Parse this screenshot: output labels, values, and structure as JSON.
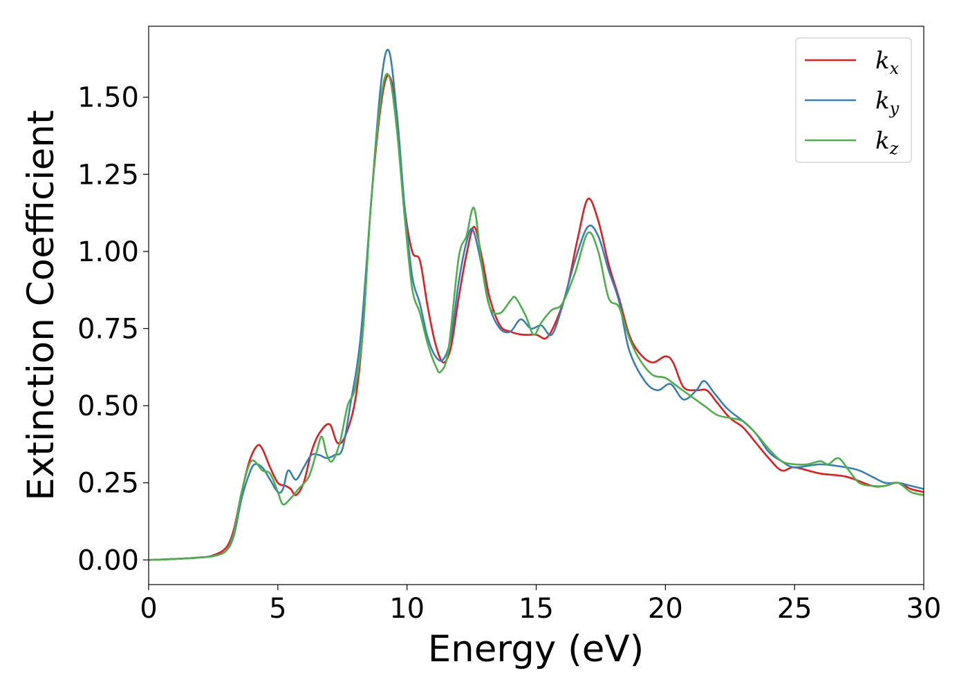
{
  "chart_data": {
    "type": "line",
    "title": "",
    "xlabel": "Energy (eV)",
    "ylabel": "Extinction Coefficient",
    "xlim": [
      0,
      30
    ],
    "ylim": [
      -0.08,
      1.73
    ],
    "xticks": [
      0,
      5,
      10,
      15,
      20,
      25,
      30
    ],
    "xtick_labels": [
      "0",
      "5",
      "10",
      "15",
      "20",
      "25",
      "30"
    ],
    "yticks": [
      0.0,
      0.25,
      0.5,
      0.75,
      1.0,
      1.25,
      1.5
    ],
    "ytick_labels": [
      "0.00",
      "0.25",
      "0.50",
      "0.75",
      "1.00",
      "1.25",
      "1.50"
    ],
    "grid": false,
    "legend_position": "top-right",
    "series": [
      {
        "name": "k",
        "subscript": "x",
        "color": "#e41a1c",
        "points": [
          [
            0,
            0
          ],
          [
            1,
            0.003
          ],
          [
            2,
            0.008
          ],
          [
            2.5,
            0.015
          ],
          [
            3,
            0.04
          ],
          [
            3.3,
            0.1
          ],
          [
            3.6,
            0.22
          ],
          [
            3.9,
            0.32
          ],
          [
            4.2,
            0.37
          ],
          [
            4.4,
            0.36
          ],
          [
            4.7,
            0.3
          ],
          [
            5,
            0.25
          ],
          [
            5.3,
            0.24
          ],
          [
            5.5,
            0.23
          ],
          [
            5.7,
            0.21
          ],
          [
            6,
            0.25
          ],
          [
            6.3,
            0.35
          ],
          [
            6.6,
            0.41
          ],
          [
            7,
            0.44
          ],
          [
            7.3,
            0.38
          ],
          [
            7.6,
            0.4
          ],
          [
            8,
            0.52
          ],
          [
            8.3,
            0.75
          ],
          [
            8.6,
            1.15
          ],
          [
            9,
            1.48
          ],
          [
            9.3,
            1.57
          ],
          [
            9.6,
            1.45
          ],
          [
            9.9,
            1.15
          ],
          [
            10.2,
            1.0
          ],
          [
            10.5,
            0.97
          ],
          [
            10.8,
            0.82
          ],
          [
            11.1,
            0.7
          ],
          [
            11.4,
            0.64
          ],
          [
            11.7,
            0.69
          ],
          [
            12,
            0.85
          ],
          [
            12.3,
            0.99
          ],
          [
            12.6,
            1.08
          ],
          [
            12.9,
            0.98
          ],
          [
            13.2,
            0.85
          ],
          [
            13.6,
            0.76
          ],
          [
            14,
            0.74
          ],
          [
            14.5,
            0.73
          ],
          [
            15,
            0.73
          ],
          [
            15.4,
            0.72
          ],
          [
            15.8,
            0.78
          ],
          [
            16.2,
            0.88
          ],
          [
            16.6,
            1.04
          ],
          [
            17,
            1.17
          ],
          [
            17.4,
            1.1
          ],
          [
            17.8,
            0.96
          ],
          [
            18.2,
            0.85
          ],
          [
            18.6,
            0.73
          ],
          [
            19,
            0.67
          ],
          [
            19.5,
            0.64
          ],
          [
            20,
            0.66
          ],
          [
            20.3,
            0.64
          ],
          [
            20.7,
            0.56
          ],
          [
            21.2,
            0.55
          ],
          [
            21.6,
            0.55
          ],
          [
            22,
            0.51
          ],
          [
            22.5,
            0.46
          ],
          [
            23,
            0.43
          ],
          [
            23.5,
            0.38
          ],
          [
            24,
            0.33
          ],
          [
            24.5,
            0.29
          ],
          [
            25,
            0.3
          ],
          [
            26,
            0.28
          ],
          [
            27,
            0.27
          ],
          [
            28,
            0.24
          ],
          [
            28.5,
            0.24
          ],
          [
            29,
            0.25
          ],
          [
            29.5,
            0.23
          ],
          [
            30,
            0.22
          ]
        ]
      },
      {
        "name": "k",
        "subscript": "y",
        "color": "#377eb8",
        "points": [
          [
            0,
            0
          ],
          [
            1,
            0.003
          ],
          [
            2,
            0.008
          ],
          [
            2.5,
            0.013
          ],
          [
            3,
            0.03
          ],
          [
            3.3,
            0.08
          ],
          [
            3.6,
            0.2
          ],
          [
            3.9,
            0.28
          ],
          [
            4.1,
            0.31
          ],
          [
            4.4,
            0.3
          ],
          [
            4.7,
            0.26
          ],
          [
            5,
            0.22
          ],
          [
            5.2,
            0.23
          ],
          [
            5.4,
            0.29
          ],
          [
            5.7,
            0.26
          ],
          [
            6,
            0.3
          ],
          [
            6.3,
            0.34
          ],
          [
            6.6,
            0.34
          ],
          [
            6.9,
            0.33
          ],
          [
            7.2,
            0.34
          ],
          [
            7.5,
            0.36
          ],
          [
            7.8,
            0.5
          ],
          [
            8.2,
            0.72
          ],
          [
            8.6,
            1.15
          ],
          [
            9,
            1.55
          ],
          [
            9.3,
            1.65
          ],
          [
            9.6,
            1.45
          ],
          [
            9.9,
            1.15
          ],
          [
            10.2,
            0.92
          ],
          [
            10.5,
            0.83
          ],
          [
            10.8,
            0.72
          ],
          [
            11.1,
            0.66
          ],
          [
            11.4,
            0.65
          ],
          [
            11.7,
            0.72
          ],
          [
            12,
            0.9
          ],
          [
            12.3,
            1.03
          ],
          [
            12.55,
            1.07
          ],
          [
            12.9,
            0.95
          ],
          [
            13.2,
            0.82
          ],
          [
            13.6,
            0.75
          ],
          [
            14,
            0.74
          ],
          [
            14.4,
            0.78
          ],
          [
            14.8,
            0.75
          ],
          [
            15.2,
            0.76
          ],
          [
            15.6,
            0.73
          ],
          [
            16,
            0.82
          ],
          [
            16.5,
            0.97
          ],
          [
            17,
            1.08
          ],
          [
            17.4,
            1.05
          ],
          [
            17.8,
            0.94
          ],
          [
            18.2,
            0.84
          ],
          [
            18.6,
            0.68
          ],
          [
            19.2,
            0.58
          ],
          [
            19.7,
            0.55
          ],
          [
            20.2,
            0.57
          ],
          [
            20.7,
            0.52
          ],
          [
            21.2,
            0.55
          ],
          [
            21.5,
            0.58
          ],
          [
            21.9,
            0.54
          ],
          [
            22.4,
            0.49
          ],
          [
            23,
            0.45
          ],
          [
            23.5,
            0.41
          ],
          [
            24,
            0.35
          ],
          [
            24.5,
            0.32
          ],
          [
            25,
            0.3
          ],
          [
            26,
            0.31
          ],
          [
            27,
            0.3
          ],
          [
            27.5,
            0.29
          ],
          [
            28,
            0.27
          ],
          [
            28.5,
            0.25
          ],
          [
            29,
            0.25
          ],
          [
            29.5,
            0.24
          ],
          [
            30,
            0.23
          ]
        ]
      },
      {
        "name": "k",
        "subscript": "z",
        "color": "#4daf4a",
        "points": [
          [
            0,
            0
          ],
          [
            1,
            0.003
          ],
          [
            2,
            0.008
          ],
          [
            2.5,
            0.012
          ],
          [
            3,
            0.03
          ],
          [
            3.3,
            0.09
          ],
          [
            3.6,
            0.22
          ],
          [
            3.9,
            0.31
          ],
          [
            4.1,
            0.32
          ],
          [
            4.4,
            0.29
          ],
          [
            4.7,
            0.28
          ],
          [
            5,
            0.22
          ],
          [
            5.2,
            0.18
          ],
          [
            5.5,
            0.2
          ],
          [
            5.8,
            0.23
          ],
          [
            6.2,
            0.27
          ],
          [
            6.5,
            0.35
          ],
          [
            6.7,
            0.4
          ],
          [
            6.9,
            0.34
          ],
          [
            7.1,
            0.32
          ],
          [
            7.4,
            0.38
          ],
          [
            7.7,
            0.5
          ],
          [
            8,
            0.56
          ],
          [
            8.3,
            0.75
          ],
          [
            8.6,
            1.15
          ],
          [
            9,
            1.5
          ],
          [
            9.3,
            1.57
          ],
          [
            9.6,
            1.4
          ],
          [
            9.9,
            1.12
          ],
          [
            10.2,
            0.88
          ],
          [
            10.5,
            0.8
          ],
          [
            10.8,
            0.7
          ],
          [
            11.1,
            0.63
          ],
          [
            11.3,
            0.61
          ],
          [
            11.6,
            0.68
          ],
          [
            12,
            0.98
          ],
          [
            12.3,
            1.05
          ],
          [
            12.6,
            1.14
          ],
          [
            12.9,
            0.95
          ],
          [
            13.2,
            0.82
          ],
          [
            13.6,
            0.8
          ],
          [
            14,
            0.84
          ],
          [
            14.2,
            0.85
          ],
          [
            14.6,
            0.79
          ],
          [
            14.9,
            0.73
          ],
          [
            15.2,
            0.77
          ],
          [
            15.6,
            0.81
          ],
          [
            16,
            0.83
          ],
          [
            16.5,
            0.93
          ],
          [
            17,
            1.06
          ],
          [
            17.4,
            1.0
          ],
          [
            17.8,
            0.85
          ],
          [
            18.2,
            0.82
          ],
          [
            18.6,
            0.72
          ],
          [
            19,
            0.65
          ],
          [
            19.5,
            0.6
          ],
          [
            20,
            0.59
          ],
          [
            20.5,
            0.56
          ],
          [
            21,
            0.53
          ],
          [
            21.5,
            0.5
          ],
          [
            22,
            0.47
          ],
          [
            22.5,
            0.46
          ],
          [
            23,
            0.45
          ],
          [
            23.5,
            0.41
          ],
          [
            24,
            0.36
          ],
          [
            24.5,
            0.32
          ],
          [
            25,
            0.31
          ],
          [
            25.5,
            0.31
          ],
          [
            26,
            0.32
          ],
          [
            26.3,
            0.31
          ],
          [
            26.7,
            0.33
          ],
          [
            27.1,
            0.29
          ],
          [
            27.5,
            0.25
          ],
          [
            28,
            0.24
          ],
          [
            28.5,
            0.24
          ],
          [
            29,
            0.25
          ],
          [
            29.5,
            0.22
          ],
          [
            30,
            0.21
          ]
        ]
      }
    ]
  }
}
